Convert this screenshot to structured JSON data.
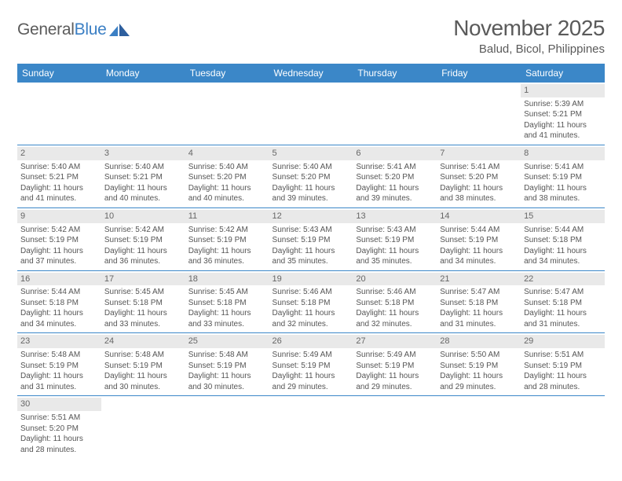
{
  "logo": {
    "text1": "General",
    "text2": "Blue"
  },
  "title": "November 2025",
  "location": "Balud, Bicol, Philippines",
  "colors": {
    "headerBg": "#3b87c8",
    "headerText": "#ffffff",
    "dayStripBg": "#e9e9e9",
    "cellBorder": "#3b87c8",
    "textColor": "#555555",
    "titleColor": "#5a5a5a"
  },
  "weekdays": [
    "Sunday",
    "Monday",
    "Tuesday",
    "Wednesday",
    "Thursday",
    "Friday",
    "Saturday"
  ],
  "firstDayOffset": 6,
  "daysInMonth": 30,
  "days": {
    "1": {
      "sunrise": "5:39 AM",
      "sunset": "5:21 PM",
      "daylight": "11 hours and 41 minutes."
    },
    "2": {
      "sunrise": "5:40 AM",
      "sunset": "5:21 PM",
      "daylight": "11 hours and 41 minutes."
    },
    "3": {
      "sunrise": "5:40 AM",
      "sunset": "5:21 PM",
      "daylight": "11 hours and 40 minutes."
    },
    "4": {
      "sunrise": "5:40 AM",
      "sunset": "5:20 PM",
      "daylight": "11 hours and 40 minutes."
    },
    "5": {
      "sunrise": "5:40 AM",
      "sunset": "5:20 PM",
      "daylight": "11 hours and 39 minutes."
    },
    "6": {
      "sunrise": "5:41 AM",
      "sunset": "5:20 PM",
      "daylight": "11 hours and 39 minutes."
    },
    "7": {
      "sunrise": "5:41 AM",
      "sunset": "5:20 PM",
      "daylight": "11 hours and 38 minutes."
    },
    "8": {
      "sunrise": "5:41 AM",
      "sunset": "5:19 PM",
      "daylight": "11 hours and 38 minutes."
    },
    "9": {
      "sunrise": "5:42 AM",
      "sunset": "5:19 PM",
      "daylight": "11 hours and 37 minutes."
    },
    "10": {
      "sunrise": "5:42 AM",
      "sunset": "5:19 PM",
      "daylight": "11 hours and 36 minutes."
    },
    "11": {
      "sunrise": "5:42 AM",
      "sunset": "5:19 PM",
      "daylight": "11 hours and 36 minutes."
    },
    "12": {
      "sunrise": "5:43 AM",
      "sunset": "5:19 PM",
      "daylight": "11 hours and 35 minutes."
    },
    "13": {
      "sunrise": "5:43 AM",
      "sunset": "5:19 PM",
      "daylight": "11 hours and 35 minutes."
    },
    "14": {
      "sunrise": "5:44 AM",
      "sunset": "5:19 PM",
      "daylight": "11 hours and 34 minutes."
    },
    "15": {
      "sunrise": "5:44 AM",
      "sunset": "5:18 PM",
      "daylight": "11 hours and 34 minutes."
    },
    "16": {
      "sunrise": "5:44 AM",
      "sunset": "5:18 PM",
      "daylight": "11 hours and 34 minutes."
    },
    "17": {
      "sunrise": "5:45 AM",
      "sunset": "5:18 PM",
      "daylight": "11 hours and 33 minutes."
    },
    "18": {
      "sunrise": "5:45 AM",
      "sunset": "5:18 PM",
      "daylight": "11 hours and 33 minutes."
    },
    "19": {
      "sunrise": "5:46 AM",
      "sunset": "5:18 PM",
      "daylight": "11 hours and 32 minutes."
    },
    "20": {
      "sunrise": "5:46 AM",
      "sunset": "5:18 PM",
      "daylight": "11 hours and 32 minutes."
    },
    "21": {
      "sunrise": "5:47 AM",
      "sunset": "5:18 PM",
      "daylight": "11 hours and 31 minutes."
    },
    "22": {
      "sunrise": "5:47 AM",
      "sunset": "5:18 PM",
      "daylight": "11 hours and 31 minutes."
    },
    "23": {
      "sunrise": "5:48 AM",
      "sunset": "5:19 PM",
      "daylight": "11 hours and 31 minutes."
    },
    "24": {
      "sunrise": "5:48 AM",
      "sunset": "5:19 PM",
      "daylight": "11 hours and 30 minutes."
    },
    "25": {
      "sunrise": "5:48 AM",
      "sunset": "5:19 PM",
      "daylight": "11 hours and 30 minutes."
    },
    "26": {
      "sunrise": "5:49 AM",
      "sunset": "5:19 PM",
      "daylight": "11 hours and 29 minutes."
    },
    "27": {
      "sunrise": "5:49 AM",
      "sunset": "5:19 PM",
      "daylight": "11 hours and 29 minutes."
    },
    "28": {
      "sunrise": "5:50 AM",
      "sunset": "5:19 PM",
      "daylight": "11 hours and 29 minutes."
    },
    "29": {
      "sunrise": "5:51 AM",
      "sunset": "5:19 PM",
      "daylight": "11 hours and 28 minutes."
    },
    "30": {
      "sunrise": "5:51 AM",
      "sunset": "5:20 PM",
      "daylight": "11 hours and 28 minutes."
    }
  },
  "labels": {
    "sunrisePrefix": "Sunrise: ",
    "sunsetPrefix": "Sunset: ",
    "daylightPrefix": "Daylight: "
  }
}
